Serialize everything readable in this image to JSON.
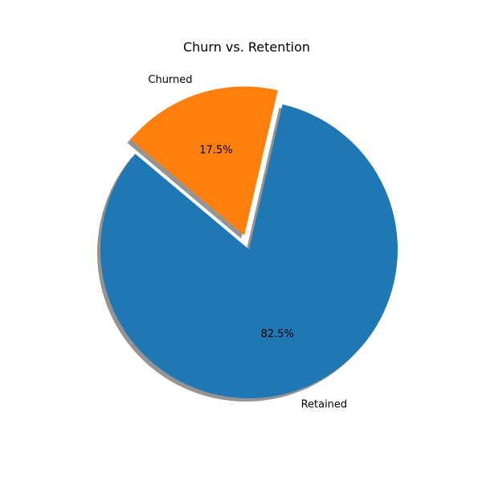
{
  "chart_data": {
    "type": "pie",
    "title": "Churn vs. Retention",
    "labels": [
      "Retained",
      "Churned"
    ],
    "values": [
      82.5,
      17.5
    ],
    "percent_labels": [
      "82.5%",
      "17.5%"
    ],
    "colors": [
      "#1f77b4",
      "#ff7f0e"
    ],
    "explode": [
      0,
      0.1
    ],
    "start_angle": 140,
    "shadow": true,
    "shadow_color": "#888888"
  }
}
